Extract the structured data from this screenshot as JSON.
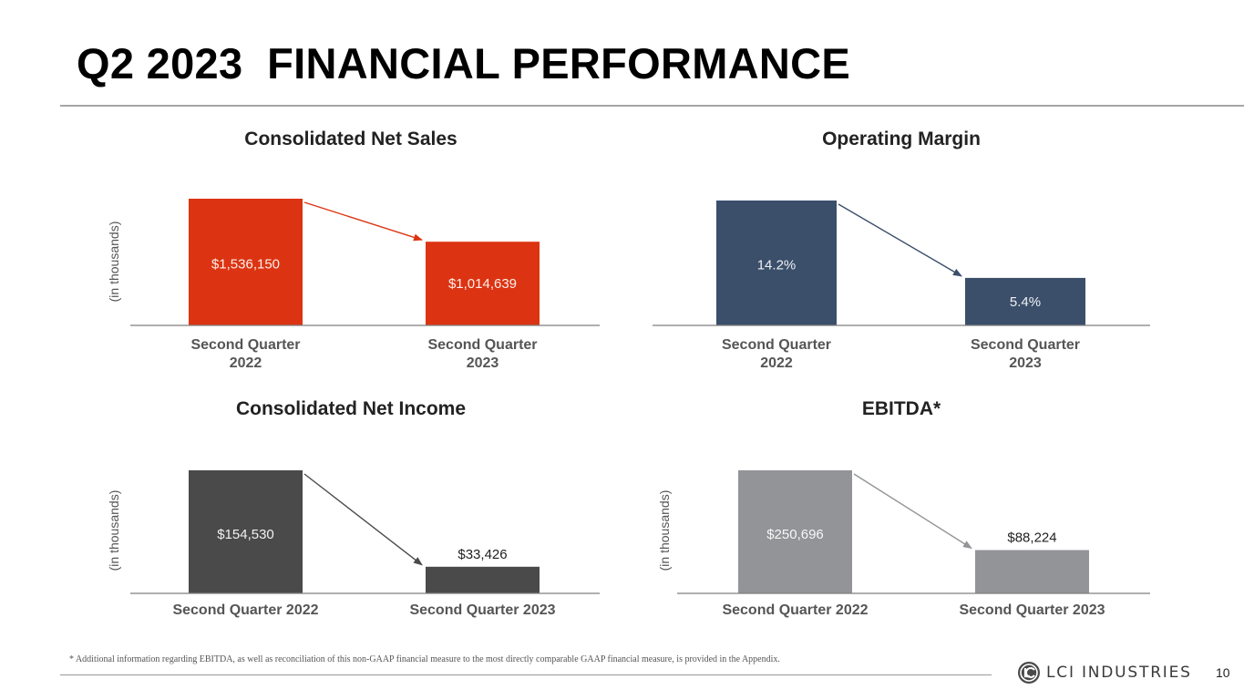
{
  "title": "Q2 2023  FINANCIAL PERFORMANCE",
  "colors": {
    "net_sales": "#dc3412",
    "op_margin": "#3b4f6b",
    "net_income": "#4a4a4a",
    "ebitda": "#929497",
    "axis": "#7f7f7f"
  },
  "chart_data": [
    {
      "id": "net-sales",
      "type": "bar",
      "title": "Consolidated Net Sales",
      "ylabel": "(in thousands)",
      "categories": [
        "Second Quarter\n2022",
        "Second Quarter\n2023"
      ],
      "values": [
        1536150,
        1014639
      ],
      "labels": [
        "$1,536,150",
        "$1,014,639"
      ],
      "label_position": "inside",
      "ylim": [
        0,
        1536150
      ],
      "color_key": "net_sales",
      "trend_arrow": true
    },
    {
      "id": "operating-margin",
      "type": "bar",
      "title": "Operating Margin",
      "ylabel": "",
      "categories": [
        "Second Quarter\n2022",
        "Second Quarter\n2023"
      ],
      "values": [
        14.2,
        5.4
      ],
      "labels": [
        "14.2%",
        "5.4%"
      ],
      "label_position": "inside",
      "ylim": [
        0,
        14.2
      ],
      "color_key": "op_margin",
      "trend_arrow": true
    },
    {
      "id": "net-income",
      "type": "bar",
      "title": "Consolidated Net Income",
      "ylabel": "(in thousands)",
      "categories": [
        "Second Quarter 2022",
        "Second Quarter 2023"
      ],
      "values": [
        154530,
        33426
      ],
      "labels": [
        "$154,530",
        "$33,426"
      ],
      "label_position": "inside-first",
      "ylim": [
        0,
        154530
      ],
      "color_key": "net_income",
      "trend_arrow": true
    },
    {
      "id": "ebitda",
      "type": "bar",
      "title": "EBITDA*",
      "ylabel": "(in thousands)",
      "categories": [
        "Second Quarter 2022",
        "Second Quarter 2023"
      ],
      "values": [
        250696,
        88224
      ],
      "labels": [
        "$250,696",
        "$88,224"
      ],
      "label_position": "inside-first",
      "ylim": [
        0,
        250696
      ],
      "color_key": "ebitda",
      "trend_arrow": true
    }
  ],
  "footnote": "* Additional information regarding EBITDA, as well as reconciliation of this non-GAAP financial measure to the most directly comparable GAAP financial measure, is provided in the Appendix.",
  "logo": {
    "text": "LCI INDUSTRIES",
    "icon": "lci-logo-icon"
  },
  "page_number": "10"
}
